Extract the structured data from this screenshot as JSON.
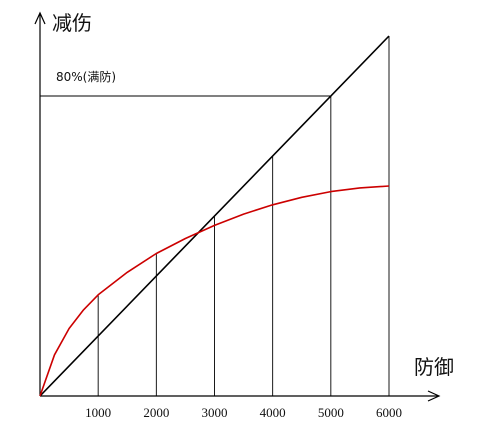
{
  "chart_data": {
    "type": "line",
    "title": "",
    "xlabel": "防御",
    "ylabel": "减伤",
    "xlim": [
      0,
      6000
    ],
    "ylim": [
      0,
      1
    ],
    "x_ticks": [
      1000,
      2000,
      3000,
      4000,
      5000,
      6000
    ],
    "x_tick_labels": [
      "1000",
      "2000",
      "3000",
      "4000",
      "5000",
      "6000"
    ],
    "grid": false,
    "legend": "none",
    "annotation": {
      "text": "80%(满防)",
      "y": 0.8,
      "x_end": 5000
    },
    "series": [
      {
        "color": "#000000",
        "x": [
          0,
          6000
        ],
        "y": [
          0,
          0.96
        ]
      },
      {
        "color": "#cc0000",
        "x": [
          0,
          250,
          500,
          750,
          1000,
          1500,
          2000,
          2500,
          3000,
          3500,
          4000,
          4500,
          5000,
          5500,
          6000
        ],
        "y": [
          0,
          0.11,
          0.18,
          0.23,
          0.27,
          0.33,
          0.38,
          0.42,
          0.455,
          0.485,
          0.51,
          0.53,
          0.545,
          0.555,
          0.56
        ]
      }
    ]
  }
}
